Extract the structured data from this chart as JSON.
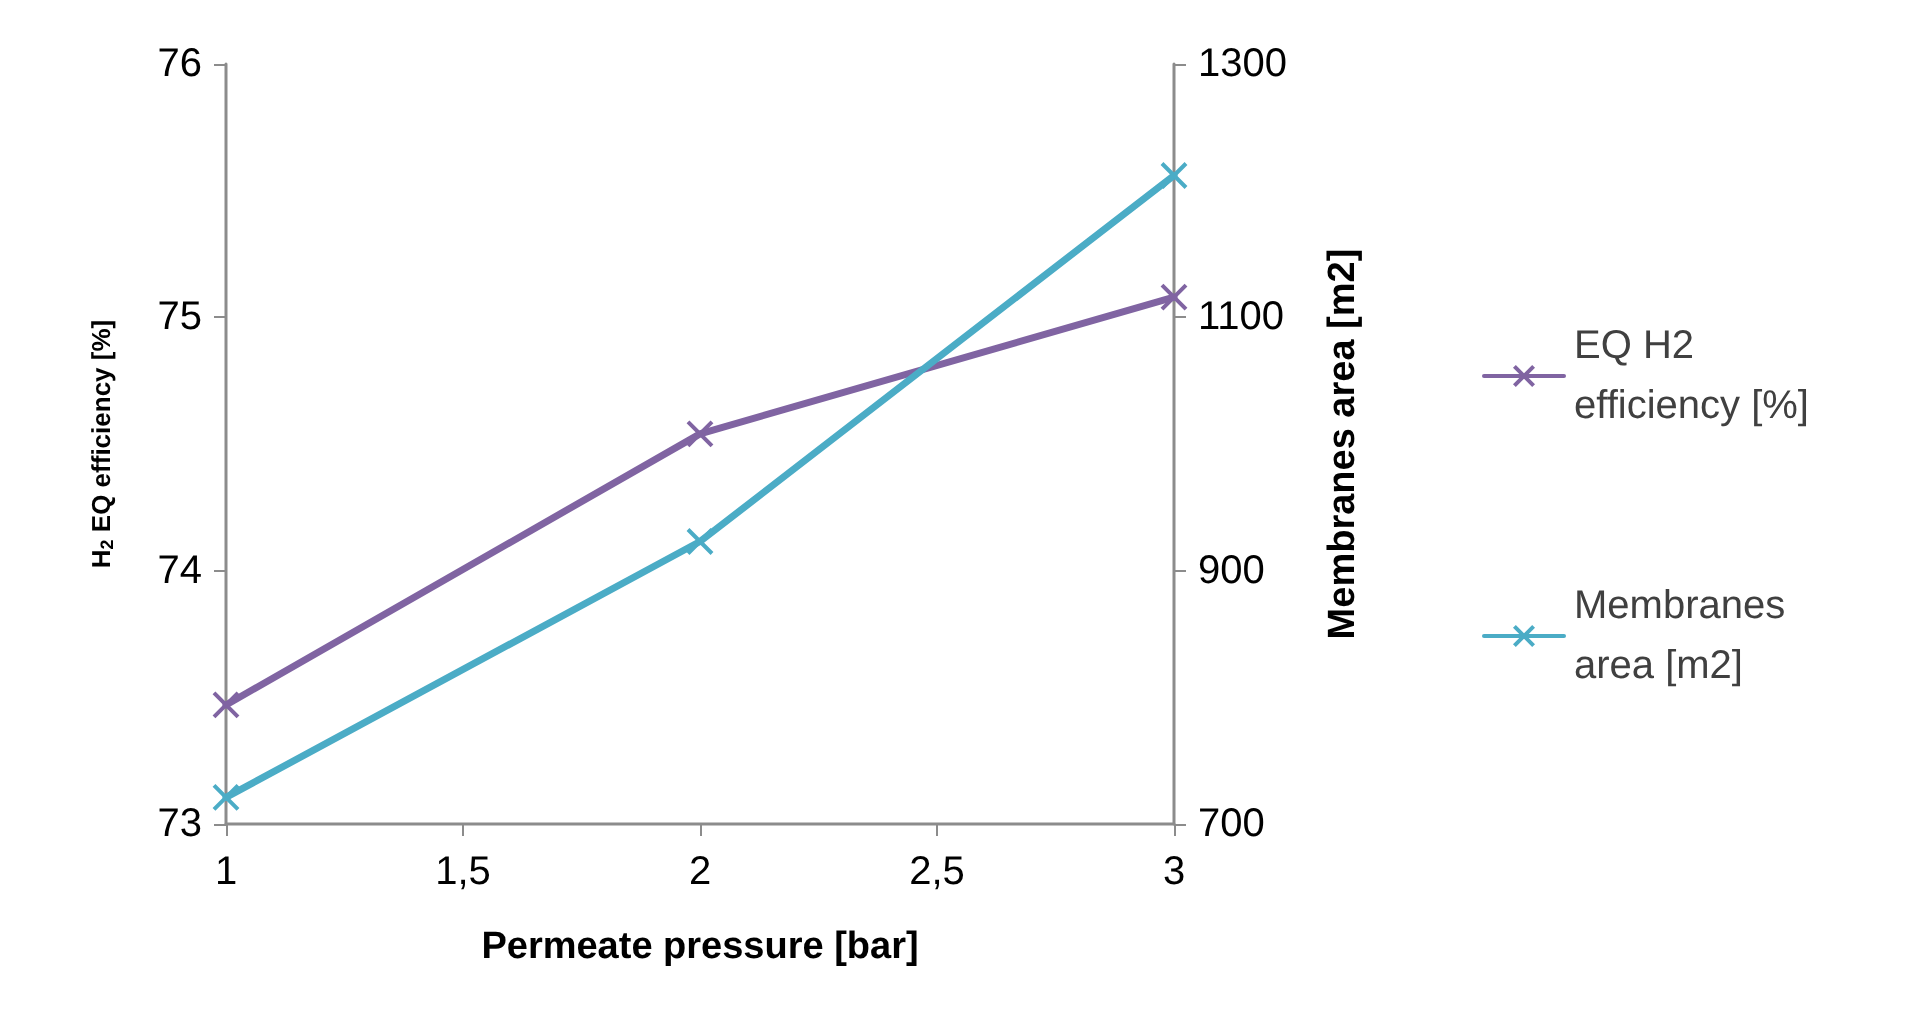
{
  "chart_data": {
    "type": "line",
    "xlabel": "Permeate pressure [bar]",
    "ylabel": "H$_{2}$ EQ efficiency [%]",
    "y2label": "Membranes area [m2]",
    "x": [
      1,
      2,
      3
    ],
    "xlim": [
      1,
      3
    ],
    "xticks": [
      {
        "value": 1,
        "label": "1"
      },
      {
        "value": 1.5,
        "label": "1,5"
      },
      {
        "value": 2,
        "label": "2"
      },
      {
        "value": 2.5,
        "label": "2,5"
      },
      {
        "value": 3,
        "label": "3"
      }
    ],
    "ylim": [
      73,
      76
    ],
    "yticks": [
      73,
      74,
      75,
      76
    ],
    "y2lim": [
      700,
      1300
    ],
    "y2ticks": [
      700,
      900,
      1100,
      1300
    ],
    "series": [
      {
        "name": "EQ H2 efficiency [%]",
        "color": "#8064a2",
        "values": [
          73.47,
          74.54,
          75.08
        ],
        "marker": "cross"
      },
      {
        "name": "Membranes area [m2]",
        "color": "#4bacc6",
        "values": [
          721,
          923,
          1212
        ],
        "axis": "y2",
        "marker": "cross"
      }
    ],
    "grid": false,
    "legend": "right",
    "line_style": "solid"
  }
}
